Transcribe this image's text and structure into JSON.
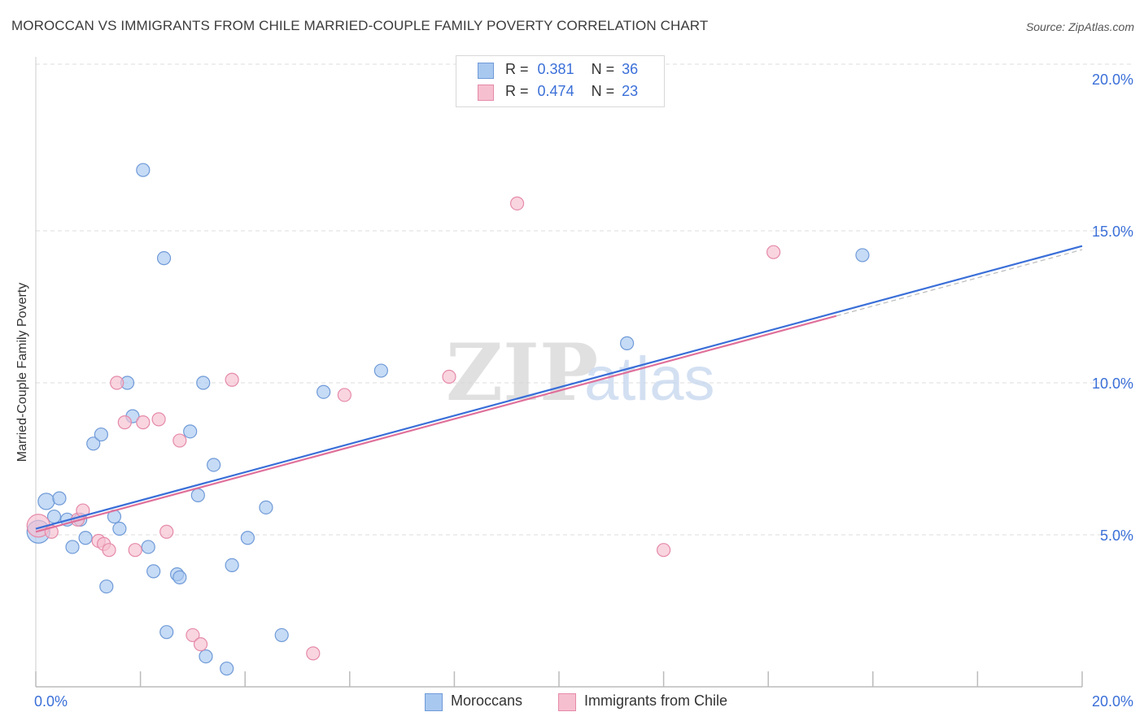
{
  "title": "MOROCCAN VS IMMIGRANTS FROM CHILE MARRIED-COUPLE FAMILY POVERTY CORRELATION CHART",
  "source": "Source: ZipAtlas.com",
  "watermark": {
    "zip": "ZIP",
    "atlas": "atlas"
  },
  "colors": {
    "blue_fill": "#a8c8f0",
    "blue_stroke": "#6f9ad8",
    "blue_line": "#3a6fd8",
    "pink_fill": "#f6bfd0",
    "pink_stroke": "#e58aa8",
    "pink_line": "#e0709a",
    "tick_text": "#3a6fd8",
    "grid": "#dddddd"
  },
  "legend_top": {
    "rows": [
      {
        "r_label": "R =",
        "r_value": "0.381",
        "n_label": "N =",
        "n_value": "36"
      },
      {
        "r_label": "R =",
        "r_value": "0.474",
        "n_label": "N =",
        "n_value": "23"
      }
    ]
  },
  "legend_bottom": {
    "items": [
      "Moroccans",
      "Immigrants from Chile"
    ]
  },
  "chart_data": {
    "type": "scatter",
    "title": "MOROCCAN VS IMMIGRANTS FROM CHILE MARRIED-COUPLE FAMILY POVERTY CORRELATION CHART",
    "xlabel": "",
    "ylabel": "Married-Couple Family Poverty",
    "xlim": [
      0,
      20
    ],
    "ylim": [
      0,
      20.5
    ],
    "x_tick_labels": [
      "0.0%",
      "20.0%"
    ],
    "y_ticks": [
      5,
      10,
      15,
      20
    ],
    "y_tick_labels": [
      "5.0%",
      "10.0%",
      "15.0%",
      "20.0%"
    ],
    "series": [
      {
        "name": "Moroccans",
        "r": 0.381,
        "n": 36,
        "trend": {
          "x0": 0,
          "y0": 5.2,
          "x1": 20,
          "y1": 14.5
        },
        "points": [
          [
            0.05,
            5.1
          ],
          [
            0.2,
            6.1
          ],
          [
            0.35,
            5.6
          ],
          [
            0.45,
            6.2
          ],
          [
            0.6,
            5.5
          ],
          [
            0.7,
            4.6
          ],
          [
            0.85,
            5.5
          ],
          [
            0.95,
            4.9
          ],
          [
            1.1,
            8.0
          ],
          [
            1.25,
            8.3
          ],
          [
            1.35,
            3.3
          ],
          [
            1.5,
            5.6
          ],
          [
            1.6,
            5.2
          ],
          [
            1.75,
            10.0
          ],
          [
            1.85,
            8.9
          ],
          [
            2.05,
            17.0
          ],
          [
            2.15,
            4.6
          ],
          [
            2.25,
            3.8
          ],
          [
            2.45,
            14.1
          ],
          [
            2.5,
            1.8
          ],
          [
            2.7,
            3.7
          ],
          [
            2.75,
            3.6
          ],
          [
            2.95,
            8.4
          ],
          [
            3.1,
            6.3
          ],
          [
            3.2,
            10.0
          ],
          [
            3.25,
            1.0
          ],
          [
            3.4,
            7.3
          ],
          [
            3.65,
            0.6
          ],
          [
            3.75,
            4.0
          ],
          [
            4.05,
            4.9
          ],
          [
            4.4,
            5.9
          ],
          [
            4.7,
            1.7
          ],
          [
            5.5,
            9.7
          ],
          [
            6.6,
            10.4
          ],
          [
            11.3,
            11.3
          ],
          [
            15.8,
            14.2
          ]
        ]
      },
      {
        "name": "Immigrants from Chile",
        "r": 0.474,
        "n": 23,
        "trend": {
          "x0": 0,
          "y0": 5.1,
          "x1": 15.3,
          "y1": 12.2
        },
        "points": [
          [
            0.05,
            5.3
          ],
          [
            0.3,
            5.1
          ],
          [
            0.8,
            5.5
          ],
          [
            0.9,
            5.8
          ],
          [
            1.2,
            4.8
          ],
          [
            1.3,
            4.7
          ],
          [
            1.4,
            4.5
          ],
          [
            1.55,
            10.0
          ],
          [
            1.7,
            8.7
          ],
          [
            1.9,
            4.5
          ],
          [
            2.05,
            8.7
          ],
          [
            2.35,
            8.8
          ],
          [
            2.5,
            5.1
          ],
          [
            2.75,
            8.1
          ],
          [
            3.0,
            1.7
          ],
          [
            3.15,
            1.4
          ],
          [
            3.75,
            10.1
          ],
          [
            5.3,
            1.1
          ],
          [
            5.9,
            9.6
          ],
          [
            7.9,
            10.2
          ],
          [
            9.2,
            15.9
          ],
          [
            12.0,
            4.5
          ],
          [
            14.1,
            14.3
          ]
        ]
      }
    ]
  }
}
